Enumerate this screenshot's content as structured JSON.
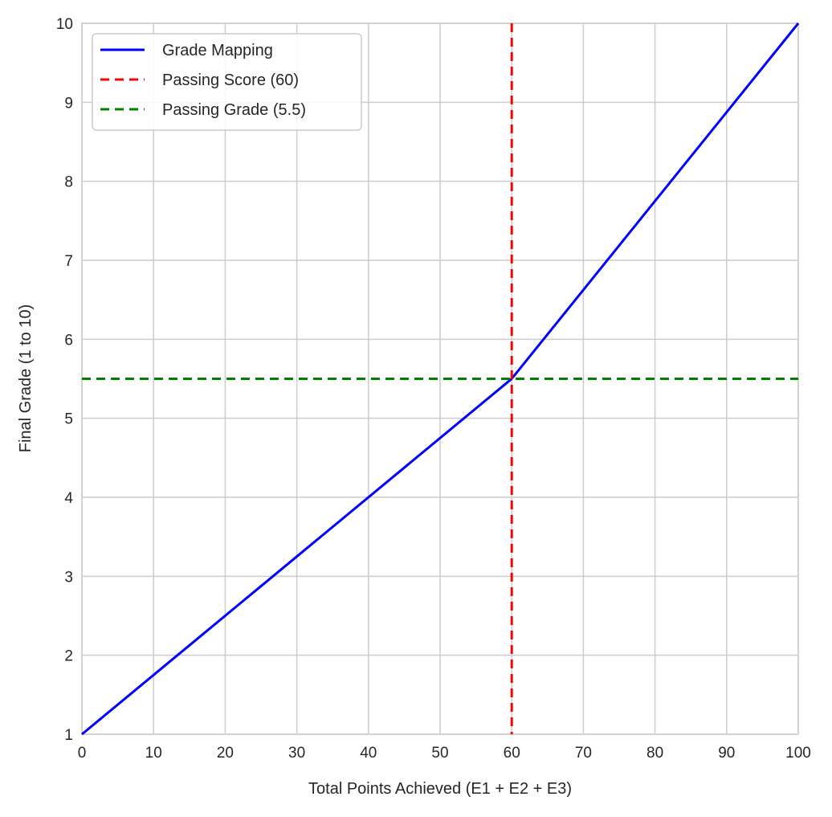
{
  "chart_data": {
    "type": "line",
    "title": "",
    "xlabel": "Total Points Achieved (E1 + E2 + E3)",
    "ylabel": "Final Grade (1 to 10)",
    "xlim": [
      0,
      100
    ],
    "ylim": [
      1,
      10
    ],
    "xticks": [
      "0",
      "10",
      "20",
      "30",
      "40",
      "50",
      "60",
      "70",
      "80",
      "90",
      "100"
    ],
    "yticks": [
      "1",
      "2",
      "3",
      "4",
      "5",
      "6",
      "7",
      "8",
      "9",
      "10"
    ],
    "grid": true,
    "legend_position": "top-left",
    "series": [
      {
        "name": "Grade Mapping",
        "style": "solid",
        "color": "#0000ff",
        "x": [
          0,
          60,
          100
        ],
        "y": [
          1,
          5.5,
          10
        ]
      },
      {
        "name": "Passing Score (60)",
        "style": "dashed",
        "color": "#ff0000",
        "vline": 60
      },
      {
        "name": "Passing Grade (5.5)",
        "style": "dashed",
        "color": "#008000",
        "hline": 5.5
      }
    ]
  }
}
